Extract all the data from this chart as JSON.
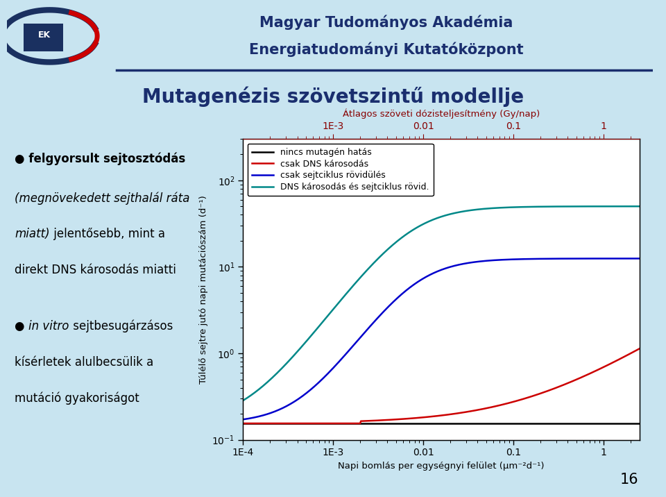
{
  "bg_color": "#c8e4f0",
  "title_line1": "Magyar Tudományos Akadémia",
  "title_line2": "Energiatudományi Kutatóközpont",
  "slide_title": "Mutagenézis szövetszintű modellje",
  "xlabel": "Napi bomlás per egységnyi felület (μm⁻²d⁻¹)",
  "ylabel": "Túlélő sejtre jutó napi mutációszám (d⁻¹)",
  "top_xlabel": "Átlagos szöveti dózisteljesítmény (Gy/nap)",
  "legend_labels": [
    "nincs mutagén hatás",
    "csak DNS károsodás",
    "csak sejtciklus rövidülés",
    "DNS károsodás és sejtciklus rövid."
  ],
  "line_colors": [
    "#000000",
    "#cc0000",
    "#0000cc",
    "#008888"
  ],
  "page_number": "16",
  "plot_bg": "#ffffff",
  "header_color": "#1a2e6e",
  "slide_title_color": "#1a2e6e",
  "top_axis_color": "#880000"
}
